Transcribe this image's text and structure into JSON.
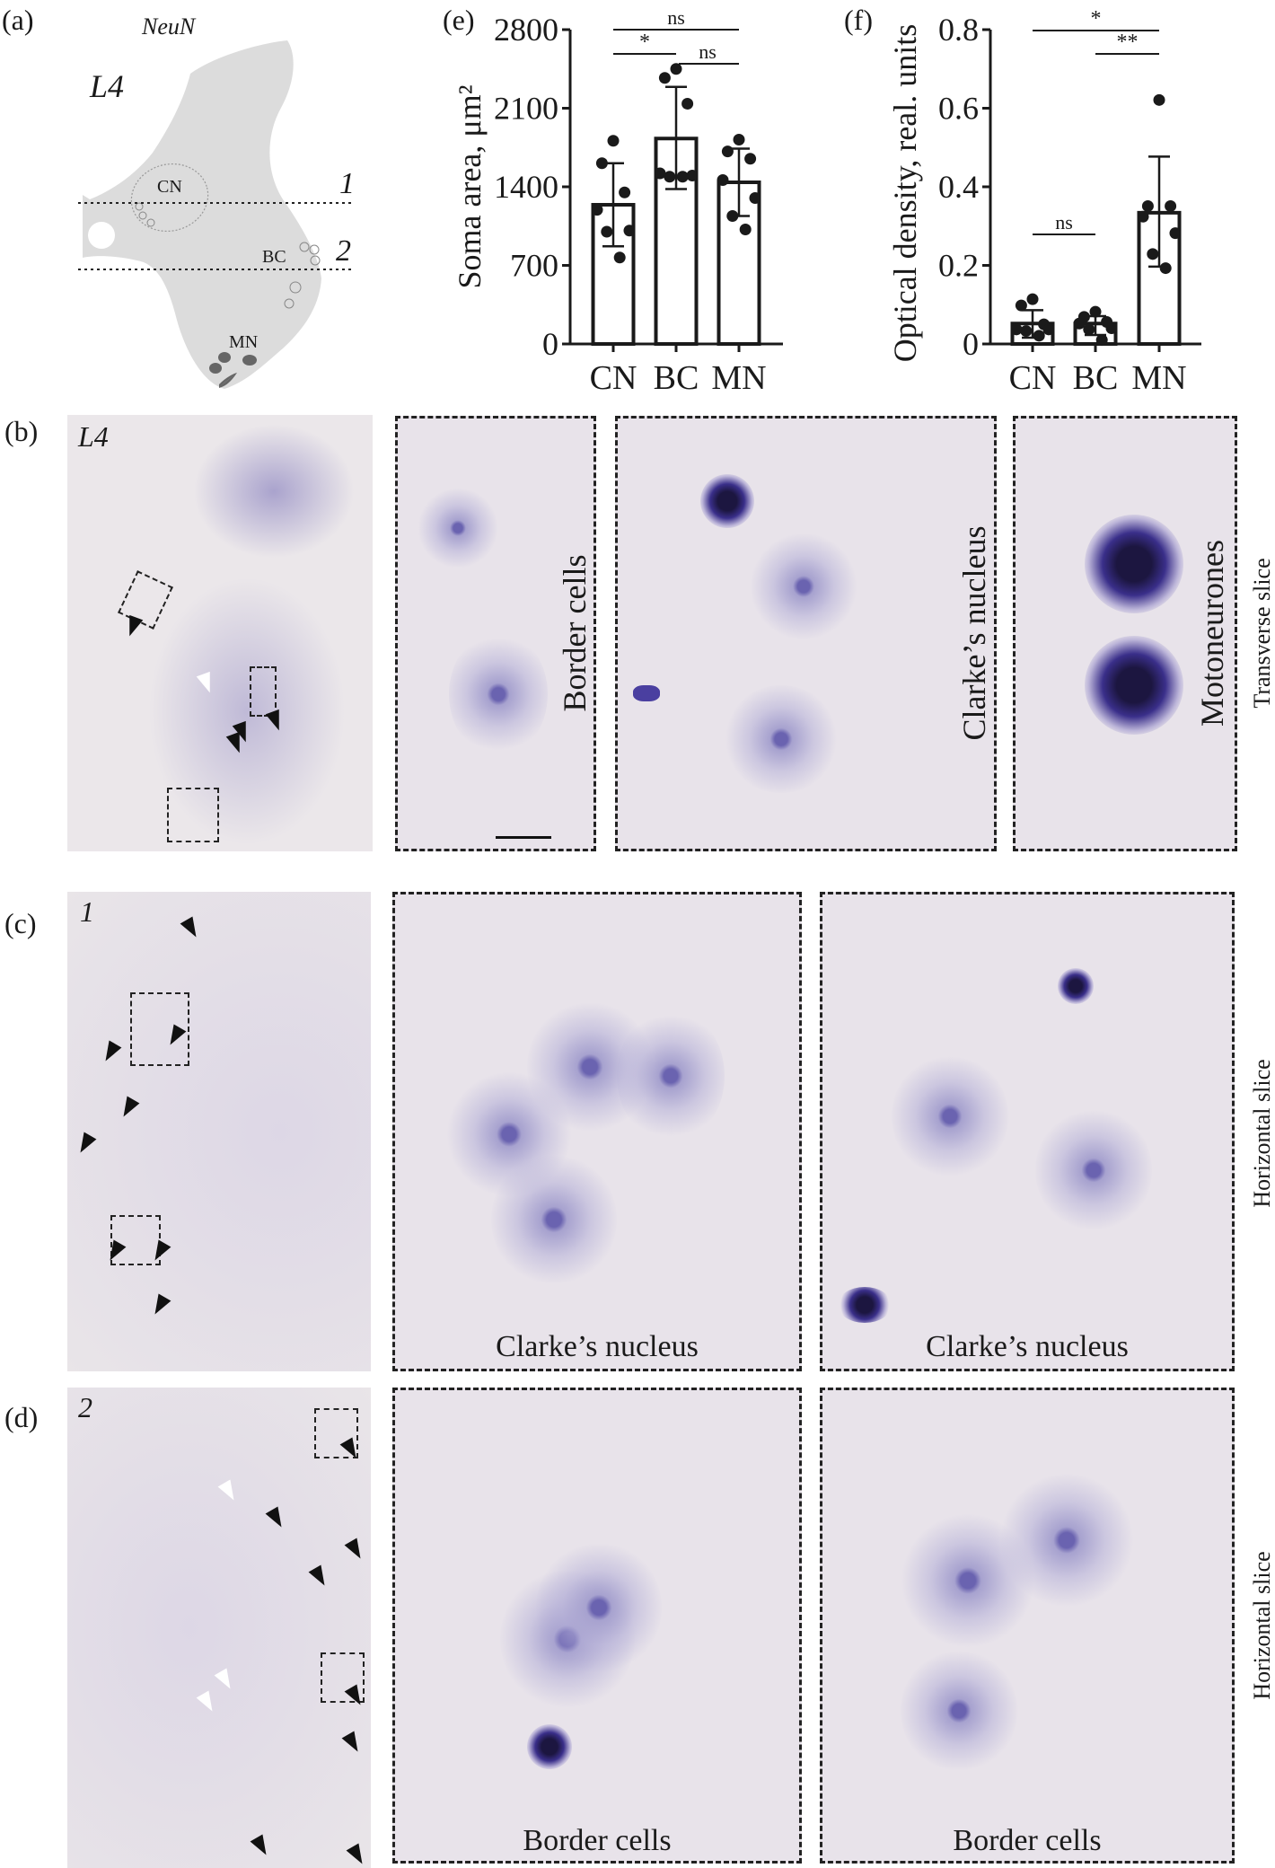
{
  "panel_a": {
    "label": "(a)",
    "stain": "NeuN",
    "level": "L4",
    "regions": [
      "CN",
      "BC",
      "MN"
    ],
    "section_lines": [
      "1",
      "2"
    ],
    "colors": {
      "tissue": "#dcdcdc",
      "motoneurones": "#666666"
    }
  },
  "panel_b": {
    "label": "(b)",
    "level": "L4",
    "insets": [
      "Border cells",
      "Clarke’s nucleus",
      "Motoneurones"
    ],
    "orientation": "Transverse slice"
  },
  "panel_c": {
    "label": "(c)",
    "section": "1",
    "captions": [
      "Clarke’s nucleus",
      "Clarke’s nucleus"
    ],
    "orientation": "Horizontal slice"
  },
  "panel_d": {
    "label": "(d)",
    "section": "2",
    "captions": [
      "Border cells",
      "Border cells"
    ],
    "orientation": "Horizontal slice"
  },
  "chart_data": [
    {
      "panel": "(e)",
      "type": "bar",
      "ylabel": "Soma area, μm²",
      "categories": [
        "CN",
        "BC",
        "MN"
      ],
      "ylim": [
        0,
        2800
      ],
      "yticks": [
        "0",
        "700",
        "1400",
        "2100",
        "2800"
      ],
      "means": [
        1240,
        1830,
        1440
      ],
      "sd": [
        [
          870,
          1610
        ],
        [
          1380,
          2290
        ],
        [
          1140,
          1740
        ]
      ],
      "points": [
        [
          1810,
          1610,
          1350,
          1195,
          1010,
          1000,
          770
        ],
        [
          2450,
          2370,
          2140,
          1520,
          1500,
          1490,
          1490
        ],
        [
          1820,
          1715,
          1650,
          1460,
          1300,
          1140,
          1020
        ]
      ],
      "significance": [
        {
          "from": "CN",
          "to": "MN",
          "label": "ns",
          "level": 1
        },
        {
          "from": "CN",
          "to": "BC",
          "label": "*",
          "level": 2
        },
        {
          "from": "BC",
          "to": "MN",
          "label": "ns",
          "level": 2
        }
      ],
      "grid": false
    },
    {
      "panel": "(f)",
      "type": "bar",
      "ylabel": "Optical density, real. units",
      "categories": [
        "CN",
        "BC",
        "MN"
      ],
      "ylim": [
        0,
        0.8
      ],
      "yticks": [
        "0",
        "0.2",
        "0.4",
        "0.6",
        "0.8"
      ],
      "means": [
        0.052,
        0.052,
        0.334
      ],
      "sd": [
        [
          0.016,
          0.086
        ],
        [
          0.023,
          0.071
        ],
        [
          0.197,
          0.477
        ]
      ],
      "points": [
        [
          0.114,
          0.098,
          0.05,
          0.037,
          0.037,
          0.033,
          0.021
        ],
        [
          0.082,
          0.069,
          0.056,
          0.052,
          0.04,
          0.037,
          0.01
        ],
        [
          0.621,
          0.351,
          0.351,
          0.324,
          0.282,
          0.229,
          0.193
        ]
      ],
      "significance": [
        {
          "from": "CN",
          "to": "MN",
          "label": "*",
          "level": 1
        },
        {
          "from": "BC",
          "to": "MN",
          "label": "**",
          "level": 2
        },
        {
          "from": "CN",
          "to": "BC",
          "label": "ns",
          "level": 3
        }
      ],
      "grid": false
    }
  ]
}
